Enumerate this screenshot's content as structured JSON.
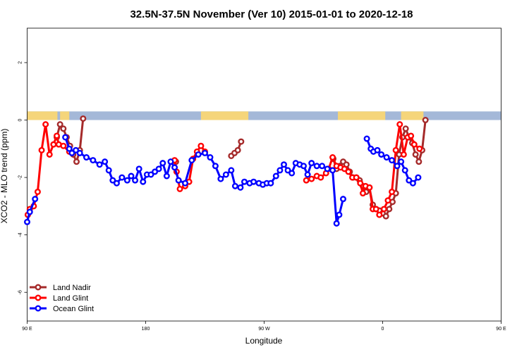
{
  "chart_data": {
    "type": "line",
    "title": "32.5N-37.5N November (Ver 10)   2015-01-01 to 2020-12-18",
    "xlabel": "Longitude",
    "ylabel": "XCO2 - MLO trend (ppm)",
    "xlim": [
      90,
      450
    ],
    "ylim": [
      -7,
      3.2
    ],
    "x_ticks": [
      {
        "value": 90,
        "label": "90 E"
      },
      {
        "value": 180,
        "label": "180"
      },
      {
        "value": 270,
        "label": "90 W"
      },
      {
        "value": 360,
        "label": "0"
      },
      {
        "value": 450,
        "label": "90 E"
      },
      {
        "value": 540,
        "label": "180"
      }
    ],
    "y_ticks": [
      {
        "value": -6,
        "label": "-6"
      },
      {
        "value": -4,
        "label": "-4"
      },
      {
        "value": -2,
        "label": "-2"
      },
      {
        "value": 0,
        "label": "0"
      },
      {
        "value": 2,
        "label": "2"
      }
    ],
    "grid": false,
    "legend_position": "bottom-left",
    "map_strip": {
      "y_range": [
        0,
        0.3
      ],
      "ocean_color": "#a4b8d8",
      "land_color": "#f5d57a"
    },
    "series": [
      {
        "name": "Land Nadir",
        "color": "#a52a2a",
        "points": [
          [
            112.5,
            -0.6
          ],
          [
            115,
            -0.15
          ],
          [
            117.5,
            -0.3
          ],
          [
            120,
            -0.6
          ],
          [
            122.5,
            -0.9
          ],
          [
            125,
            -1.2
          ],
          [
            127.5,
            -1.45
          ],
          [
            130,
            -1.05
          ],
          [
            132.5,
            0.05
          ],
          [
            203,
            -1.45
          ],
          [
            245,
            -1.25
          ],
          [
            247.5,
            -1.15
          ],
          [
            250,
            -1.05
          ],
          [
            252.5,
            -0.75
          ],
          [
            322.5,
            -1.35
          ],
          [
            325,
            -1.7
          ],
          [
            327.5,
            -1.6
          ],
          [
            330,
            -1.45
          ],
          [
            332.5,
            -1.55
          ],
          [
            335,
            -1.8
          ],
          [
            337.5,
            -2.0
          ],
          [
            340,
            -2.0
          ],
          [
            342.5,
            -2.1
          ],
          [
            345,
            -2.3
          ],
          [
            347.5,
            -2.5
          ],
          [
            350,
            -2.35
          ],
          [
            352.5,
            -2.95
          ],
          [
            355,
            -3.1
          ],
          [
            357.5,
            -3.15
          ],
          [
            360,
            -3.25
          ],
          [
            362.5,
            -3.35
          ],
          [
            365,
            -3.1
          ],
          [
            367.5,
            -2.85
          ],
          [
            370,
            -2.55
          ],
          [
            372.5,
            -1.2
          ],
          [
            375,
            -0.6
          ],
          [
            377.5,
            -0.3
          ],
          [
            380,
            -0.6
          ],
          [
            382.5,
            -0.8
          ],
          [
            385,
            -1.2
          ],
          [
            387.5,
            -1.45
          ],
          [
            390,
            -1.05
          ],
          [
            392.5,
            0.0
          ]
        ]
      },
      {
        "name": "Land Glint",
        "color": "#ff0000",
        "points": [
          [
            90.5,
            -3.3
          ],
          [
            92,
            -3.1
          ],
          [
            95,
            -3.0
          ],
          [
            98,
            -2.5
          ],
          [
            101,
            -1.05
          ],
          [
            104,
            -0.15
          ],
          [
            107,
            -1.2
          ],
          [
            110,
            -0.85
          ],
          [
            112.5,
            -0.55
          ],
          [
            114,
            -0.85
          ],
          [
            117.5,
            -0.9
          ],
          [
            122,
            -1.1
          ],
          [
            202,
            -1.4
          ],
          [
            203.5,
            -1.8
          ],
          [
            206,
            -2.4
          ],
          [
            210,
            -2.3
          ],
          [
            213,
            -2.15
          ],
          [
            216,
            -1.35
          ],
          [
            219,
            -1.1
          ],
          [
            222,
            -0.9
          ],
          [
            225,
            -1.1
          ],
          [
            302,
            -2.1
          ],
          [
            306,
            -2.05
          ],
          [
            310,
            -1.95
          ],
          [
            313,
            -2.0
          ],
          [
            317,
            -1.85
          ],
          [
            319,
            -1.7
          ],
          [
            322,
            -1.3
          ],
          [
            325,
            -1.6
          ],
          [
            328,
            -1.65
          ],
          [
            331,
            -1.7
          ],
          [
            334,
            -1.8
          ],
          [
            337,
            -2.0
          ],
          [
            340,
            -2.0
          ],
          [
            343,
            -2.2
          ],
          [
            345,
            -2.55
          ],
          [
            347,
            -2.3
          ],
          [
            350,
            -2.35
          ],
          [
            352.5,
            -3.1
          ],
          [
            355,
            -3.1
          ],
          [
            357.5,
            -3.3
          ],
          [
            361,
            -3.1
          ],
          [
            364,
            -2.8
          ],
          [
            367,
            -2.5
          ],
          [
            370,
            -1.05
          ],
          [
            373,
            -0.15
          ],
          [
            376,
            -1.2
          ],
          [
            379,
            -0.6
          ],
          [
            381.5,
            -0.55
          ],
          [
            384,
            -0.85
          ],
          [
            388,
            -1.0
          ]
        ]
      },
      {
        "name": "Ocean Glint",
        "color": "#0000ff",
        "points": [
          [
            90,
            -3.55
          ],
          [
            92,
            -3.2
          ],
          [
            96,
            -2.75
          ],
          [
            119,
            -0.6
          ],
          [
            122,
            -1.0
          ],
          [
            124,
            -1.15
          ],
          [
            127,
            -1.05
          ],
          [
            130,
            -1.15
          ],
          [
            135,
            -1.3
          ],
          [
            140,
            -1.4
          ],
          [
            145,
            -1.55
          ],
          [
            149,
            -1.45
          ],
          [
            152,
            -1.75
          ],
          [
            155,
            -2.1
          ],
          [
            158,
            -2.2
          ],
          [
            162,
            -2.0
          ],
          [
            166,
            -2.1
          ],
          [
            169,
            -1.95
          ],
          [
            172,
            -2.1
          ],
          [
            175,
            -1.7
          ],
          [
            178,
            -2.15
          ],
          [
            181,
            -1.9
          ],
          [
            184,
            -1.9
          ],
          [
            187,
            -1.8
          ],
          [
            190,
            -1.7
          ],
          [
            193,
            -1.5
          ],
          [
            196,
            -1.95
          ],
          [
            199,
            -1.45
          ],
          [
            202,
            -1.65
          ],
          [
            205,
            -2.1
          ],
          [
            210,
            -2.2
          ],
          [
            215,
            -1.4
          ],
          [
            220,
            -1.2
          ],
          [
            225,
            -1.15
          ],
          [
            229,
            -1.3
          ],
          [
            233,
            -1.6
          ],
          [
            237,
            -2.05
          ],
          [
            241,
            -1.9
          ],
          [
            245,
            -1.75
          ],
          [
            248,
            -2.3
          ],
          [
            252,
            -2.35
          ],
          [
            255,
            -2.15
          ],
          [
            259,
            -2.2
          ],
          [
            262,
            -2.15
          ],
          [
            266,
            -2.2
          ],
          [
            269,
            -2.25
          ],
          [
            272,
            -2.2
          ],
          [
            275,
            -2.2
          ],
          [
            279,
            -1.95
          ],
          [
            282,
            -1.75
          ],
          [
            285,
            -1.55
          ],
          [
            288,
            -1.75
          ],
          [
            291,
            -1.85
          ],
          [
            294,
            -1.5
          ],
          [
            297,
            -1.55
          ],
          [
            300,
            -1.6
          ],
          [
            303,
            -1.9
          ],
          [
            306,
            -1.5
          ],
          [
            310,
            -1.6
          ],
          [
            314,
            -1.6
          ],
          [
            318,
            -1.7
          ],
          [
            322,
            -1.75
          ],
          [
            325,
            -3.6
          ],
          [
            327,
            -3.3
          ],
          [
            330,
            -2.75
          ],
          [
            348,
            -0.65
          ],
          [
            351,
            -1.0
          ],
          [
            353,
            -1.1
          ],
          [
            356,
            -1.05
          ],
          [
            359,
            -1.2
          ],
          [
            363,
            -1.3
          ],
          [
            367,
            -1.4
          ],
          [
            371,
            -1.6
          ],
          [
            374,
            -1.45
          ],
          [
            377,
            -1.75
          ],
          [
            380,
            -2.1
          ],
          [
            383,
            -2.2
          ],
          [
            387,
            -2.0
          ]
        ]
      }
    ]
  }
}
